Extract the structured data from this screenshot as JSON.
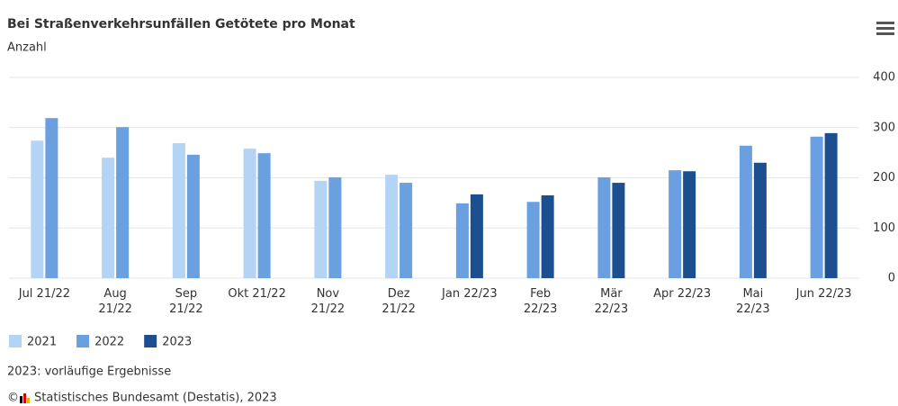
{
  "chart_data": {
    "type": "bar",
    "title": "Bei Straßenverkehrsunfällen Getötete pro Monat",
    "subtitle": "Anzahl",
    "categories": [
      "Jul 21/22",
      "Aug\n21/22",
      "Sep\n21/22",
      "Okt 21/22",
      "Nov\n21/22",
      "Dez\n21/22",
      "Jan 22/23",
      "Feb\n22/23",
      "Mär\n22/23",
      "Apr 22/23",
      "Mai\n22/23",
      "Jun 22/23"
    ],
    "series": [
      {
        "name": "2021",
        "color": "#b3d4f5",
        "values": [
          274,
          240,
          269,
          258,
          194,
          206,
          null,
          null,
          null,
          null,
          null,
          null
        ]
      },
      {
        "name": "2022",
        "color": "#6a9fe0",
        "values": [
          319,
          301,
          246,
          249,
          201,
          190,
          149,
          152,
          201,
          215,
          264,
          282
        ]
      },
      {
        "name": "2023",
        "color": "#1c4f8f",
        "values": [
          null,
          null,
          null,
          null,
          null,
          null,
          167,
          165,
          190,
          213,
          230,
          289
        ]
      }
    ],
    "ylim": [
      0,
      400
    ],
    "yticks": [
      0,
      100,
      200,
      300,
      400
    ],
    "grid": true,
    "note": "2023: vorläufige Ergebnisse",
    "copyright": "©",
    "source": "Statistisches Bundesamt (Destatis), 2023"
  }
}
